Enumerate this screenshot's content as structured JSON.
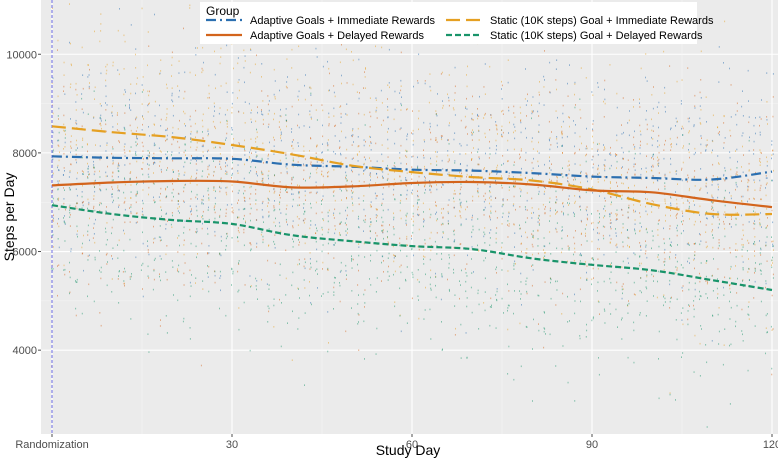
{
  "chart_data": {
    "type": "line",
    "title": "",
    "xlabel": "Study Day",
    "ylabel": "Steps per Day",
    "xlim": [
      0,
      121
    ],
    "ylim": [
      2300,
      11100
    ],
    "x_ticks": [
      {
        "value": 0,
        "label": "Randomization"
      },
      {
        "value": 30,
        "label": "30"
      },
      {
        "value": 60,
        "label": "60"
      },
      {
        "value": 90,
        "label": "90"
      },
      {
        "value": 120,
        "label": "120"
      }
    ],
    "y_ticks": [
      {
        "value": 4000,
        "label": "4000"
      },
      {
        "value": 6000,
        "label": "6000"
      },
      {
        "value": 8000,
        "label": "8000"
      },
      {
        "value": 10000,
        "label": "10000"
      }
    ],
    "reference_line_x": 0,
    "grid": true,
    "legend": {
      "title": "Group",
      "placement": "top"
    },
    "x": [
      0,
      10,
      20,
      30,
      40,
      50,
      60,
      70,
      80,
      90,
      100,
      110,
      120
    ],
    "series": [
      {
        "name": "Adaptive Goals + Immediate Rewards",
        "color": "#2b6fb0",
        "dash": "dashdot",
        "values": [
          7930,
          7900,
          7890,
          7880,
          7760,
          7720,
          7660,
          7640,
          7590,
          7520,
          7490,
          7460,
          7620
        ],
        "scatter_sd": 1150
      },
      {
        "name": "Static (10K steps) Goal + Immediate Rewards",
        "color": "#e5a022",
        "dash": "longdash",
        "values": [
          8540,
          8420,
          8320,
          8160,
          7970,
          7740,
          7610,
          7510,
          7440,
          7260,
          6960,
          6760,
          6760
        ],
        "scatter_sd": 1250
      },
      {
        "name": "Adaptive Goals + Delayed Rewards",
        "color": "#d3641c",
        "dash": "solid",
        "values": [
          7340,
          7400,
          7430,
          7420,
          7300,
          7320,
          7390,
          7410,
          7360,
          7240,
          7200,
          7040,
          6900
        ],
        "scatter_sd": 1100
      },
      {
        "name": "Static (10K steps) Goal + Delayed Rewards",
        "color": "#19946a",
        "dash": "dashed",
        "values": [
          6940,
          6760,
          6640,
          6560,
          6330,
          6210,
          6110,
          6050,
          5860,
          5730,
          5620,
          5420,
          5220
        ],
        "scatter_sd": 1050
      }
    ]
  }
}
